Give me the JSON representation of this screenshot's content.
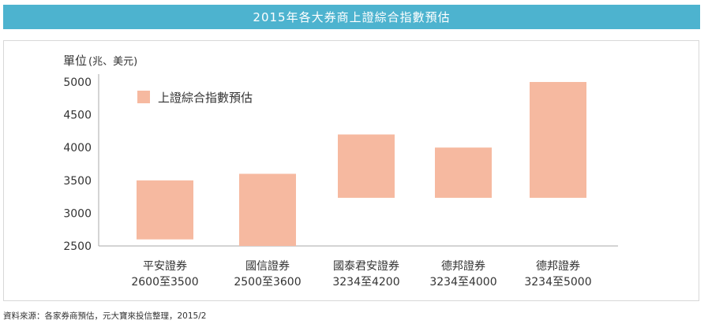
{
  "header": {
    "title": "2015年各大券商上證綜合指數預估"
  },
  "chart_data": {
    "type": "bar",
    "title": "2015年各大券商上證綜合指數預估",
    "ylabel": "單位",
    "ylabel_unit": "(兆、美元)",
    "ylim": [
      2500,
      5000
    ],
    "yticks": [
      5000,
      4500,
      4000,
      3500,
      3000,
      2500
    ],
    "ytick_labels": [
      "5000",
      "4500",
      "4000",
      "3500",
      "3000",
      "2500"
    ],
    "grid": false,
    "legend_position": "top-left",
    "series": [
      {
        "name": "上證綜合指數預估",
        "color": "#f6b9a0",
        "low": [
          2600,
          2500,
          3234,
          3234,
          3234
        ],
        "high": [
          3500,
          3600,
          4200,
          4000,
          5000
        ]
      }
    ],
    "categories": [
      {
        "name": "平安證券",
        "range": "2600至3500"
      },
      {
        "name": "國信證券",
        "range": "2500至3600"
      },
      {
        "name": "國泰君安證券",
        "range": "3234至4200"
      },
      {
        "name": "德邦證券",
        "range": "3234至4000"
      },
      {
        "name": "德邦證券",
        "range": "3234至5000"
      }
    ]
  },
  "footer": {
    "source": "資料來源：各家券商預估，元大寶來投信整理，2015/2"
  }
}
